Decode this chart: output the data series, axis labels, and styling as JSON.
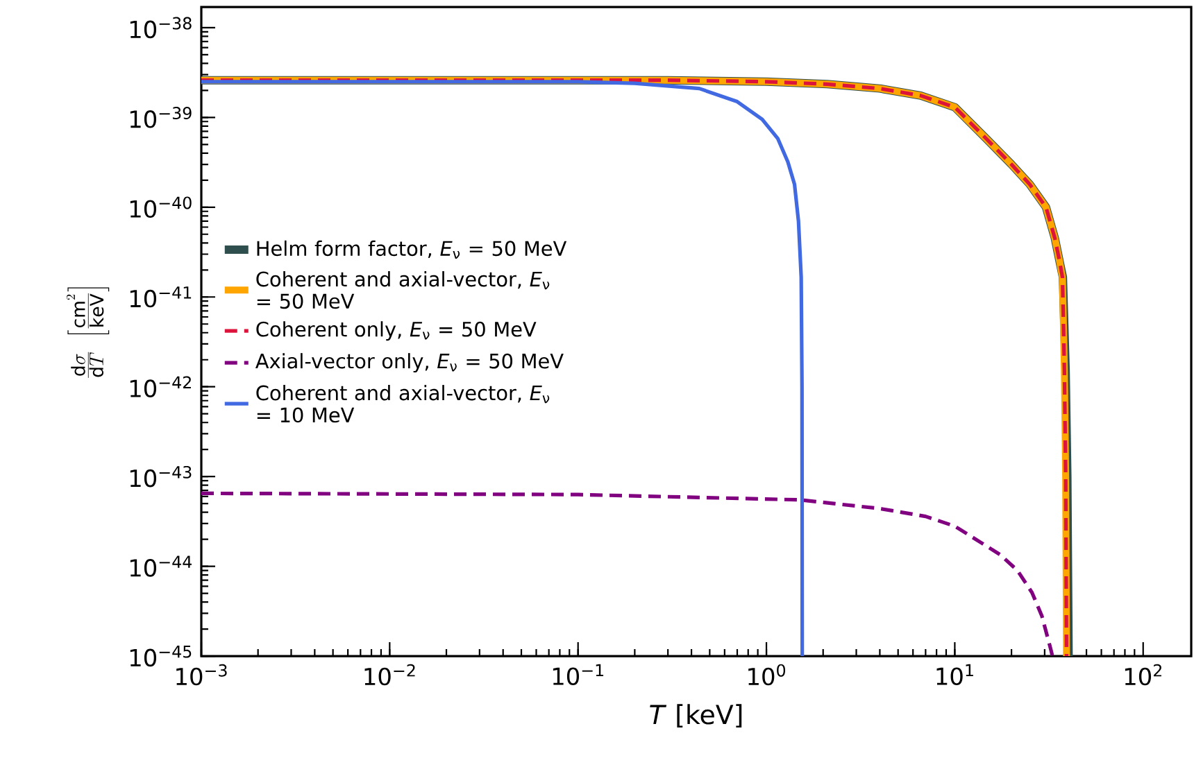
{
  "chart_data": {
    "type": "line",
    "xlabel": "*T* [keV]",
    "ylabel": "\\frac{\\mathrm{d}\\sigma}{\\mathrm{d}T}\\ \\left[\\frac{\\mathrm{cm}^2}{\\mathrm{keV}}\\right]",
    "log": "xy",
    "xlim": [
      0.001,
      180
    ],
    "ylim": [
      1e-45,
      1.7e-38
    ],
    "xticks": [
      {
        "value": 0.001,
        "label": "10$^{−3}$"
      },
      {
        "value": 0.01,
        "label": "10$^{−2}$"
      },
      {
        "value": 0.1,
        "label": "10$^{−1}$"
      },
      {
        "value": 1,
        "label": "10$^{0}$"
      },
      {
        "value": 10,
        "label": "10$^{1}$"
      },
      {
        "value": 100,
        "label": "10$^{2}$"
      }
    ],
    "yticks": [
      {
        "value": 1e-45,
        "label": "10$^{−45}$"
      },
      {
        "value": 1e-44,
        "label": "10$^{−44}$"
      },
      {
        "value": 1e-43,
        "label": "10$^{−43}$"
      },
      {
        "value": 1e-42,
        "label": "10$^{−42}$"
      },
      {
        "value": 1e-41,
        "label": "10$^{−41}$"
      },
      {
        "value": 1e-40,
        "label": "10$^{−40}$"
      },
      {
        "value": 1e-39,
        "label": "10$^{−39}$"
      },
      {
        "value": 1e-38,
        "label": "10$^{−38}$"
      }
    ],
    "grid": false,
    "legend": "left",
    "marker": "none",
    "series": [
      {
        "name": "Helm form factor, *E*$_{ν}$ = 50 MeV",
        "color": "#2f4f4f",
        "line_style": "solid",
        "x": [
          0.001,
          0.3,
          1,
          2.1,
          4,
          6.6,
          10,
          14.7,
          20,
          25,
          30.5,
          34,
          36,
          37.5,
          38.8,
          39.6,
          40.2
        ],
        "values": [
          2.6e-39,
          2.6e-39,
          2.5e-39,
          2.35e-39,
          2.1e-39,
          1.75e-39,
          1.3e-39,
          5.8e-40,
          3e-40,
          1.8e-40,
          1e-40,
          4.5e-41,
          2.5e-41,
          1.66e-41,
          1.5e-42,
          1e-43,
          1e-45
        ]
      },
      {
        "name": "Coherent and axial-vector, *E*$_{ν}$ = 50 MeV",
        "color": "#ffa500",
        "line_style": "solid",
        "x": [
          0.001,
          0.3,
          1,
          2.1,
          4,
          6.6,
          10,
          14.7,
          20,
          25,
          30.5,
          34,
          36,
          37.3,
          38.2,
          38.8,
          39.2
        ],
        "values": [
          2.6e-39,
          2.6e-39,
          2.5e-39,
          2.35e-39,
          2.1e-39,
          1.75e-39,
          1.3e-39,
          5.8e-40,
          3e-40,
          1.8e-40,
          1e-40,
          4.5e-41,
          2.5e-41,
          1.66e-41,
          1.5e-42,
          1e-43,
          1e-45
        ]
      },
      {
        "name": "Coherent only, *E*$_{ν}$ = 50 MeV",
        "color": "#dc143c",
        "line_style": "dashed",
        "x": [
          0.001,
          0.3,
          1,
          2.1,
          4,
          6.6,
          10,
          14.7,
          20,
          25,
          30.5,
          34,
          36,
          37.3,
          38.2,
          38.8,
          39.2
        ],
        "values": [
          2.6e-39,
          2.6e-39,
          2.5e-39,
          2.35e-39,
          2.1e-39,
          1.75e-39,
          1.3e-39,
          5.8e-40,
          3e-40,
          1.8e-40,
          1e-40,
          4.5e-41,
          2.5e-41,
          1.66e-41,
          1.5e-42,
          1e-43,
          1e-45
        ]
      },
      {
        "name": "Axial-vector only, *E*$_{ν}$ = 50 MeV",
        "color": "#800080",
        "line_style": "dashed",
        "x": [
          0.001,
          0.1,
          1.5,
          4,
          7,
          10,
          14,
          17.4,
          21.5,
          25.7,
          29,
          32.3,
          33
        ],
        "values": [
          6.5e-44,
          6.3e-44,
          5.5e-44,
          4.4e-44,
          3.6e-44,
          2.8e-44,
          1.8e-44,
          1.35e-44,
          9e-45,
          5.1e-45,
          2.8e-45,
          1.2e-45,
          1e-45
        ]
      },
      {
        "name": "Coherent and axial-vector, *E*$_{ν}$ = 10 MeV",
        "color": "#4169e1",
        "line_style": "solid",
        "x": [
          0.001,
          0.1,
          0.2,
          0.44,
          0.7,
          0.95,
          1.15,
          1.3,
          1.41,
          1.48,
          1.53,
          1.545,
          1.55
        ],
        "values": [
          2.5e-39,
          2.5e-39,
          2.4e-39,
          2.1e-39,
          1.5e-39,
          9.5e-40,
          5.8e-40,
          3.2e-40,
          1.8e-40,
          7e-41,
          1.66e-41,
          1e-42,
          1e-45
        ]
      }
    ]
  }
}
